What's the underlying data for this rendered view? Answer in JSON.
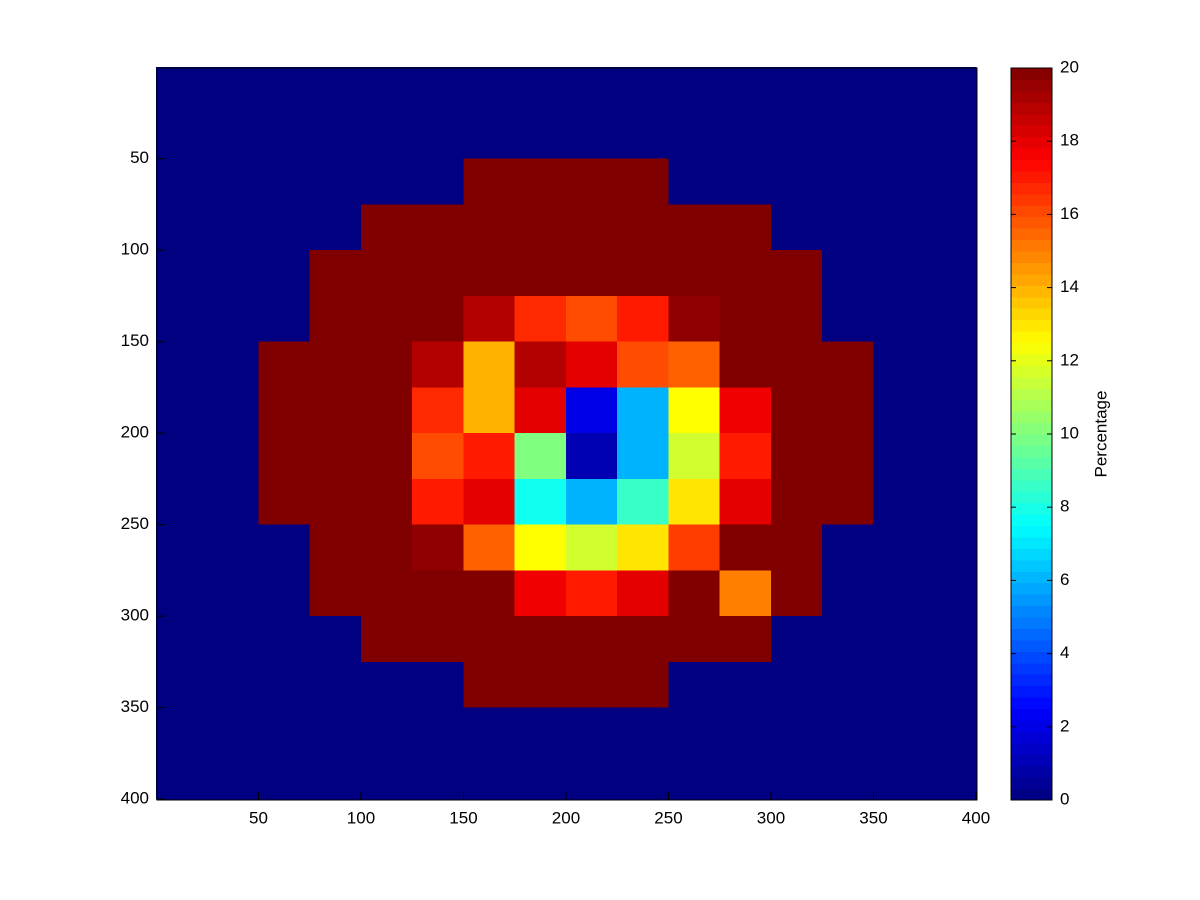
{
  "chart_data": {
    "type": "heatmap",
    "colormap": "jet",
    "x": [
      12.5,
      37.5,
      62.5,
      87.5,
      112.5,
      137.5,
      162.5,
      187.5,
      212.5,
      237.5,
      262.5,
      287.5,
      312.5,
      337.5,
      362.5,
      387.5
    ],
    "y": [
      12.5,
      37.5,
      62.5,
      87.5,
      112.5,
      137.5,
      162.5,
      187.5,
      212.5,
      237.5,
      262.5,
      287.5,
      312.5,
      337.5,
      362.5,
      387.5
    ],
    "values": [
      [
        0,
        0,
        0,
        0,
        0,
        0,
        0,
        0,
        0,
        0,
        0,
        0,
        0,
        0,
        0,
        0
      ],
      [
        0,
        0,
        0,
        0,
        0,
        0,
        0,
        0,
        0,
        0,
        0,
        0,
        0,
        0,
        0,
        0
      ],
      [
        0,
        0,
        0,
        0,
        0,
        0,
        20,
        20,
        20,
        20,
        0,
        0,
        0,
        0,
        0,
        0
      ],
      [
        0,
        0,
        0,
        0,
        20,
        20,
        20,
        20,
        20,
        20,
        20,
        20,
        0,
        0,
        0,
        0
      ],
      [
        0,
        0,
        0,
        20,
        20,
        20,
        20,
        20,
        20,
        20,
        20,
        20,
        20,
        0,
        0,
        0
      ],
      [
        0,
        0,
        0,
        20,
        20,
        20,
        19,
        16.7,
        16,
        17,
        19.7,
        20,
        20,
        0,
        0,
        0
      ],
      [
        0,
        0,
        20,
        20,
        20,
        19,
        14,
        19,
        18,
        16,
        15.6,
        20,
        20,
        20,
        0,
        0
      ],
      [
        0,
        0,
        20,
        20,
        20,
        16.7,
        14,
        18,
        2,
        6,
        12.5,
        17.8,
        20,
        20,
        0,
        0
      ],
      [
        0,
        0,
        20,
        20,
        20,
        16,
        17,
        10,
        1,
        6,
        11.6,
        17,
        20,
        20,
        0,
        0
      ],
      [
        0,
        0,
        20,
        20,
        20,
        17,
        18,
        7.8,
        6,
        8.6,
        13,
        18,
        20,
        20,
        0,
        0
      ],
      [
        0,
        0,
        0,
        20,
        20,
        19.7,
        15.6,
        12.5,
        11.6,
        13,
        16.3,
        20,
        20,
        0,
        0,
        0
      ],
      [
        0,
        0,
        0,
        20,
        20,
        20,
        20,
        17.8,
        17,
        18,
        20,
        15,
        20,
        0,
        0,
        0
      ],
      [
        0,
        0,
        0,
        0,
        20,
        20,
        20,
        20,
        20,
        20,
        20,
        20,
        0,
        0,
        0,
        0
      ],
      [
        0,
        0,
        0,
        0,
        0,
        0,
        20,
        20,
        20,
        20,
        0,
        0,
        0,
        0,
        0,
        0
      ],
      [
        0,
        0,
        0,
        0,
        0,
        0,
        0,
        0,
        0,
        0,
        0,
        0,
        0,
        0,
        0,
        0
      ],
      [
        0,
        0,
        0,
        0,
        0,
        0,
        0,
        0,
        0,
        0,
        0,
        0,
        0,
        0,
        0,
        0
      ]
    ],
    "xlim": [
      0.5,
      400.5
    ],
    "ylim": [
      0.5,
      400.5
    ],
    "y_reversed": true,
    "xticks": [
      50,
      100,
      150,
      200,
      250,
      300,
      350,
      400
    ],
    "yticks": [
      50,
      100,
      150,
      200,
      250,
      300,
      350,
      400
    ],
    "colorbar_label": "Percentage",
    "clim": [
      0,
      20
    ],
    "cticks": [
      0,
      2,
      4,
      6,
      8,
      10,
      12,
      14,
      16,
      18,
      20
    ]
  }
}
